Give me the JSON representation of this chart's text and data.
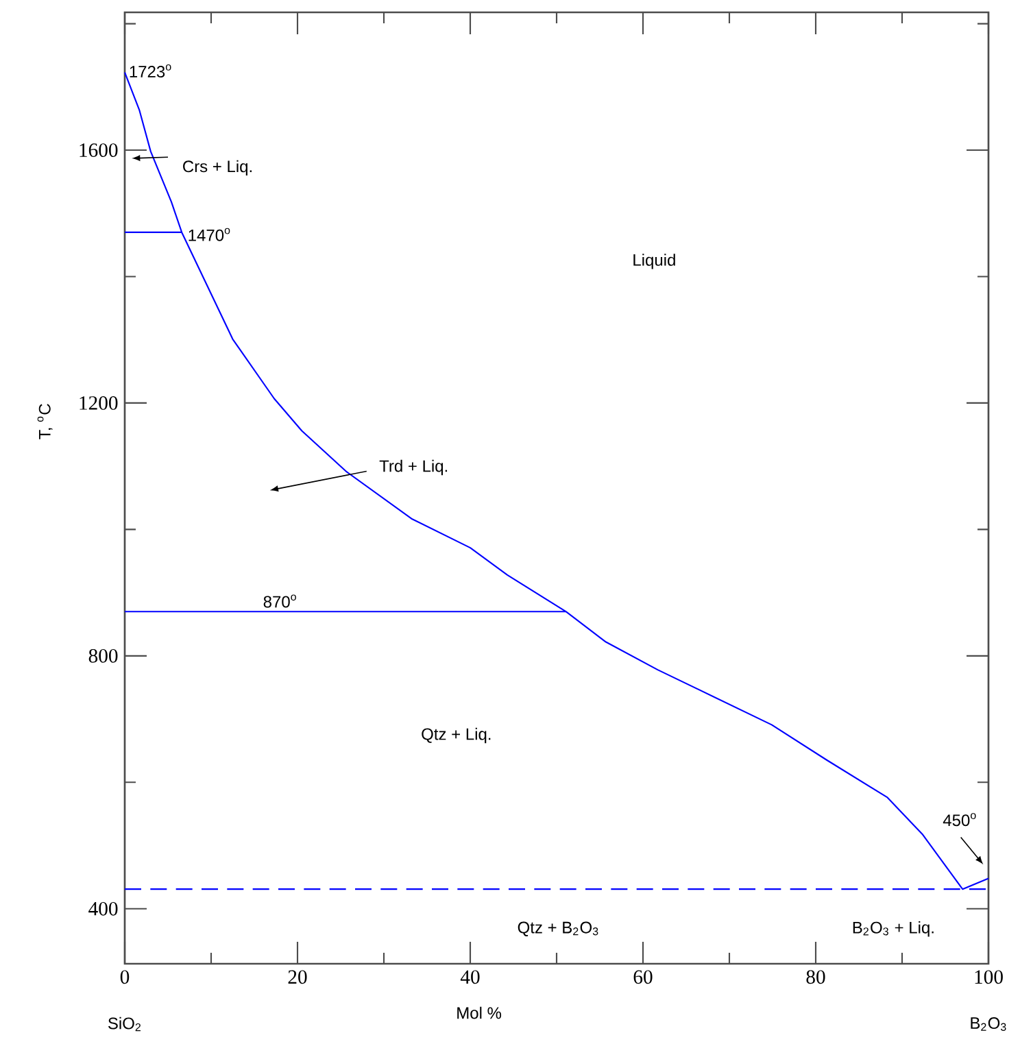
{
  "chart_data": {
    "type": "line",
    "xlabel": "Mol %",
    "ylabel": "T, $^{o}$C",
    "xlim": [
      0,
      100
    ],
    "ylim": [
      313,
      1818
    ],
    "xticks": [
      0,
      {
        "value": 10,
        "label": null
      },
      20,
      {
        "value": 30,
        "label": null
      },
      40,
      {
        "value": 50,
        "label": null
      },
      60,
      {
        "value": 70,
        "label": null
      },
      80,
      {
        "value": 90,
        "label": null
      },
      100
    ],
    "yticks": [
      400,
      {
        "value": 600,
        "label": null
      },
      800,
      {
        "value": 1000,
        "label": null
      },
      1200,
      {
        "value": 1400,
        "label": null
      },
      1600,
      {
        "value": 1800,
        "label": null
      }
    ],
    "series": [
      {
        "color": "#0000ff",
        "x": [
          0,
          1.7,
          3.0,
          5.4,
          6.6,
          12.5,
          17.3,
          20.5,
          25.7,
          33.2,
          40,
          44.3,
          51.1,
          55.7,
          61.7,
          74.9,
          81.3,
          88.3,
          92.4,
          97,
          100
        ],
        "values": [
          1723,
          1663,
          1598,
          1518,
          1470,
          1301,
          1207,
          1156,
          1091,
          1017,
          971,
          928,
          870,
          822,
          778,
          691,
          635,
          576,
          517,
          431,
          448
        ]
      },
      {
        "color": "#0000ff",
        "x": [
          0,
          6.6
        ],
        "values": [
          1470,
          1470
        ]
      },
      {
        "color": "#0000ff",
        "x": [
          0,
          51.1
        ],
        "values": [
          870,
          870
        ]
      }
    ],
    "ref_lines": [
      {
        "axis": "y",
        "value": 431,
        "color": "#0000ff",
        "line_style": "dashed"
      }
    ],
    "annotations": [
      {
        "text": "1723$^{o}$",
        "x": 0,
        "y": 1723
      },
      "Crs + Liq.",
      {
        "text": "1470$^{o}$",
        "x": 6.6,
        "y": 1470
      },
      "Liquid",
      "Trd + Liq.",
      {
        "text": "870$^{o}$",
        "x": 18,
        "y": 870
      },
      "Qtz + Liq.",
      "Qtz + B$_{2}$O$_{3}$",
      "B$_{2}$O$_{3}$ + Liq.",
      "450$^{o}$",
      "SiO$_{2}$",
      "B$_{2}$O$_{3}$"
    ],
    "marker": "none",
    "line_style": "solid"
  }
}
